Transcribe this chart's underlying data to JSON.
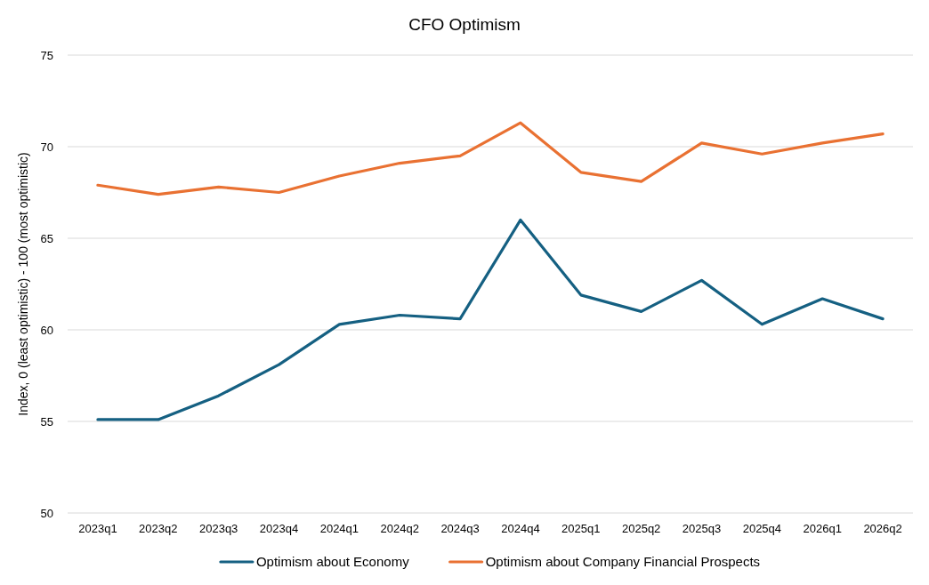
{
  "chart_data": {
    "type": "line",
    "title": "CFO Optimism",
    "ylabel": "Index, 0 (least optimistic) - 100 (most optimistic)",
    "categories": [
      "2023q1",
      "2023q2",
      "2023q3",
      "2023q4",
      "2024q1",
      "2024q2",
      "2024q3",
      "2024q4",
      "2025q1",
      "2025q2",
      "2025q3",
      "2025q4",
      "2026q1",
      "2026q2"
    ],
    "series": [
      {
        "name": "Optimism about Economy",
        "color": "#156082",
        "values": [
          55.1,
          55.1,
          56.4,
          58.1,
          60.3,
          60.8,
          60.6,
          66.0,
          61.9,
          61.0,
          62.7,
          60.3,
          61.7,
          60.6
        ]
      },
      {
        "name": "Optimism about Company Financial Prospects",
        "color": "#e97132",
        "values": [
          67.9,
          67.4,
          67.8,
          67.5,
          68.4,
          69.1,
          69.5,
          71.3,
          68.6,
          68.1,
          70.2,
          69.6,
          70.2,
          70.7
        ]
      }
    ],
    "ylim": [
      50,
      75
    ],
    "yticks": [
      50,
      55,
      60,
      65,
      70,
      75
    ],
    "grid": "y",
    "legend": "bottom",
    "marker": "none",
    "line_style": "solid"
  }
}
